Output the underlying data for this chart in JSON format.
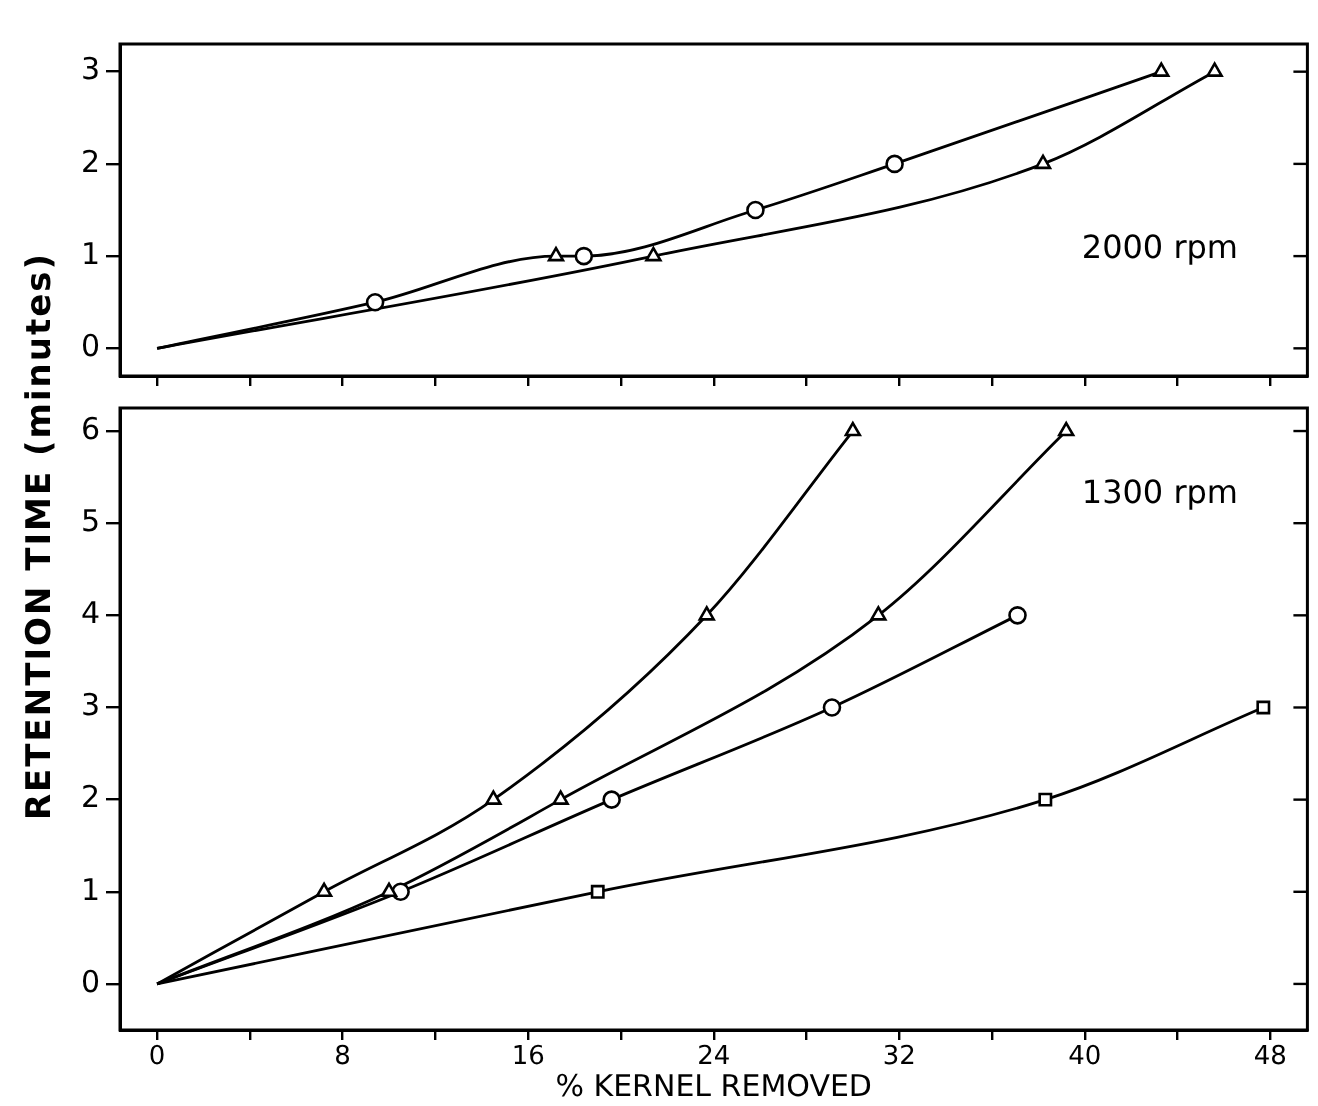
{
  "chart_data": [
    {
      "type": "line",
      "annotations": [
        "2000 rpm"
      ],
      "xlim": [
        -1.6,
        49.6
      ],
      "xticks": [
        {
          "value": 0,
          "label": null
        },
        {
          "value": 4,
          "label": null
        },
        {
          "value": 8,
          "label": null
        },
        {
          "value": 12,
          "label": null
        },
        {
          "value": 16,
          "label": null
        },
        {
          "value": 20,
          "label": null
        },
        {
          "value": 24,
          "label": null
        },
        {
          "value": 28,
          "label": null
        },
        {
          "value": 32,
          "label": null
        },
        {
          "value": 36,
          "label": null
        },
        {
          "value": 40,
          "label": null
        },
        {
          "value": 44,
          "label": null
        },
        {
          "value": 48,
          "label": null
        }
      ],
      "ylim": [
        -0.3,
        3.3
      ],
      "yticks": [
        0,
        1,
        2,
        3
      ],
      "tick_labels": "y",
      "grid": false,
      "series": [
        {
          "type": "line",
          "marker": "none",
          "color": "#000000",
          "x": [
            0,
            9.4,
            17.2,
            18.4,
            25.8,
            31.8,
            43.3
          ],
          "values": [
            0,
            0.5,
            1,
            1,
            1.5,
            2,
            3
          ]
        },
        {
          "type": "line",
          "marker": "none",
          "color": "#000000",
          "x": [
            0,
            21.4,
            38.2,
            45.6
          ],
          "values": [
            0,
            1,
            2,
            3
          ]
        },
        {
          "type": "scatter",
          "marker": "triangle",
          "color": "#000000",
          "x": [
            17.2,
            43.3
          ],
          "values": [
            1,
            3
          ]
        },
        {
          "type": "scatter",
          "marker": "circle",
          "color": "#000000",
          "x": [
            9.4,
            18.4,
            25.8,
            31.8
          ],
          "values": [
            0.5,
            1,
            1.5,
            2
          ]
        },
        {
          "type": "scatter",
          "marker": "triangle",
          "color": "#000000",
          "x": [
            21.4,
            38.2,
            45.6
          ],
          "values": [
            1,
            2,
            3
          ]
        }
      ]
    },
    {
      "type": "line",
      "annotations": [
        "1300 rpm"
      ],
      "xlabel": "% KERNEL REMOVED",
      "ylabel": "RETENTION TIME (minutes)",
      "xlim": [
        -1.6,
        49.6
      ],
      "xticks": [
        0,
        {
          "value": 4,
          "label": null
        },
        8,
        {
          "value": 12,
          "label": null
        },
        16,
        {
          "value": 20,
          "label": null
        },
        24,
        {
          "value": 28,
          "label": null
        },
        32,
        {
          "value": 36,
          "label": null
        },
        40,
        {
          "value": 44,
          "label": null
        },
        48
      ],
      "ylim": [
        -0.5,
        6.25
      ],
      "yticks": [
        0,
        1,
        2,
        3,
        4,
        5,
        6
      ],
      "grid": false,
      "series": [
        {
          "type": "line",
          "marker": "none",
          "color": "#000000",
          "x": [
            0,
            7.2,
            14.5,
            23.7,
            30.0
          ],
          "values": [
            0,
            1,
            2,
            4,
            6
          ]
        },
        {
          "type": "line",
          "marker": "none",
          "color": "#000000",
          "x": [
            0,
            10.0,
            17.4,
            31.1,
            39.2
          ],
          "values": [
            0,
            1,
            2,
            4,
            6
          ]
        },
        {
          "type": "line",
          "marker": "none",
          "color": "#000000",
          "x": [
            0,
            10.5,
            19.6,
            29.1,
            37.1
          ],
          "values": [
            0,
            1,
            2,
            3,
            4
          ]
        },
        {
          "type": "line",
          "marker": "none",
          "color": "#000000",
          "x": [
            0,
            19.0,
            38.3,
            47.7
          ],
          "values": [
            0,
            1,
            2,
            3
          ]
        },
        {
          "type": "scatter",
          "marker": "triangle",
          "color": "#000000",
          "x": [
            7.2,
            14.5,
            23.7,
            30.0
          ],
          "values": [
            1,
            2,
            4,
            6
          ]
        },
        {
          "type": "scatter",
          "marker": "triangle",
          "color": "#000000",
          "x": [
            10.0,
            17.4,
            31.1,
            39.2
          ],
          "values": [
            1,
            2,
            4,
            6
          ]
        },
        {
          "type": "scatter",
          "marker": "circle",
          "color": "#000000",
          "x": [
            10.5,
            19.6,
            29.1,
            37.1
          ],
          "values": [
            1,
            2,
            3,
            4
          ]
        },
        {
          "type": "scatter",
          "marker": "square",
          "color": "#000000",
          "x": [
            19.0,
            38.3,
            47.7
          ],
          "values": [
            1,
            2,
            3
          ]
        }
      ]
    }
  ]
}
